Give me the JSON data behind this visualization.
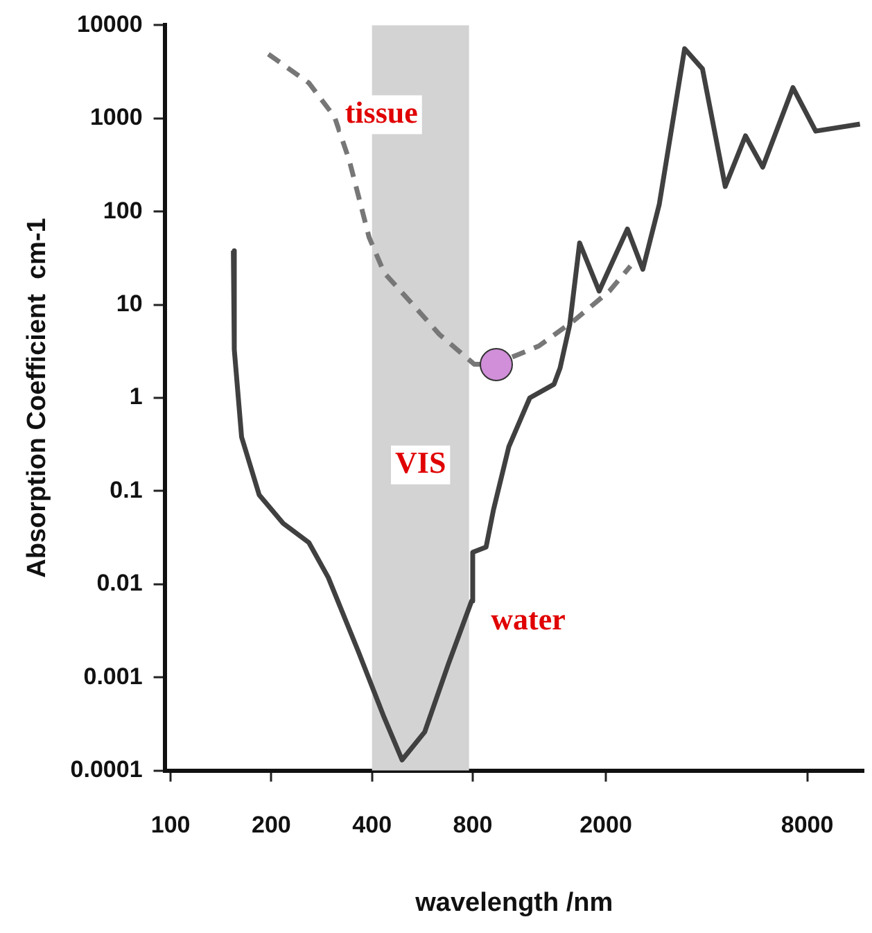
{
  "chart_data": {
    "type": "line",
    "xlabel": "wavelength /nm",
    "ylabel": "Absorption Coefficient  cm-1",
    "log": "xy",
    "xlim": [
      96,
      11800
    ],
    "ylim": [
      0.0001,
      10000
    ],
    "xticks": [
      100,
      200,
      400,
      800,
      2000,
      8000
    ],
    "yticks": [
      0.0001,
      0.001,
      0.01,
      0.1,
      1,
      10,
      100,
      1000,
      10000
    ],
    "grid": false,
    "legend": false,
    "marker": "none",
    "bands": [
      {
        "axis": "x",
        "from": 400,
        "to": 780,
        "label": "VIS",
        "color": "#d3d3d3"
      }
    ],
    "series": [
      {
        "name": "water",
        "color": "#404040",
        "line_style": "solid",
        "x": [
          154,
          155,
          163,
          184,
          217,
          259,
          296,
          364,
          435,
          492,
          575,
          677,
          794,
          800,
          877,
          923,
          1026,
          1185,
          1400,
          1460,
          1560,
          1670,
          1910,
          2320,
          2580,
          2890,
          3440,
          3890,
          4550,
          5230,
          5890,
          7250,
          8480,
          11500
        ],
        "values": [
          38,
          3.3,
          0.38,
          0.091,
          0.045,
          0.028,
          0.0118,
          0.0019,
          0.00037,
          0.00013,
          0.00026,
          0.0014,
          0.0066,
          0.022,
          0.025,
          0.063,
          0.3,
          1.0,
          1.4,
          2.1,
          6.1,
          46,
          14,
          65,
          24,
          120,
          5600,
          3400,
          186,
          650,
          300,
          2140,
          730,
          870
        ]
      },
      {
        "name": "tissue",
        "color": "#777777",
        "line_style": "dashed",
        "x": [
          196,
          259,
          309,
          342,
          392,
          435,
          518,
          636,
          808,
          933,
          1260,
          1610,
          2050,
          2370
        ],
        "values": [
          4900,
          2400,
          1040,
          355,
          53,
          22,
          11,
          4.8,
          2.3,
          2.3,
          3.6,
          6.8,
          14,
          26
        ]
      }
    ]
  }
}
